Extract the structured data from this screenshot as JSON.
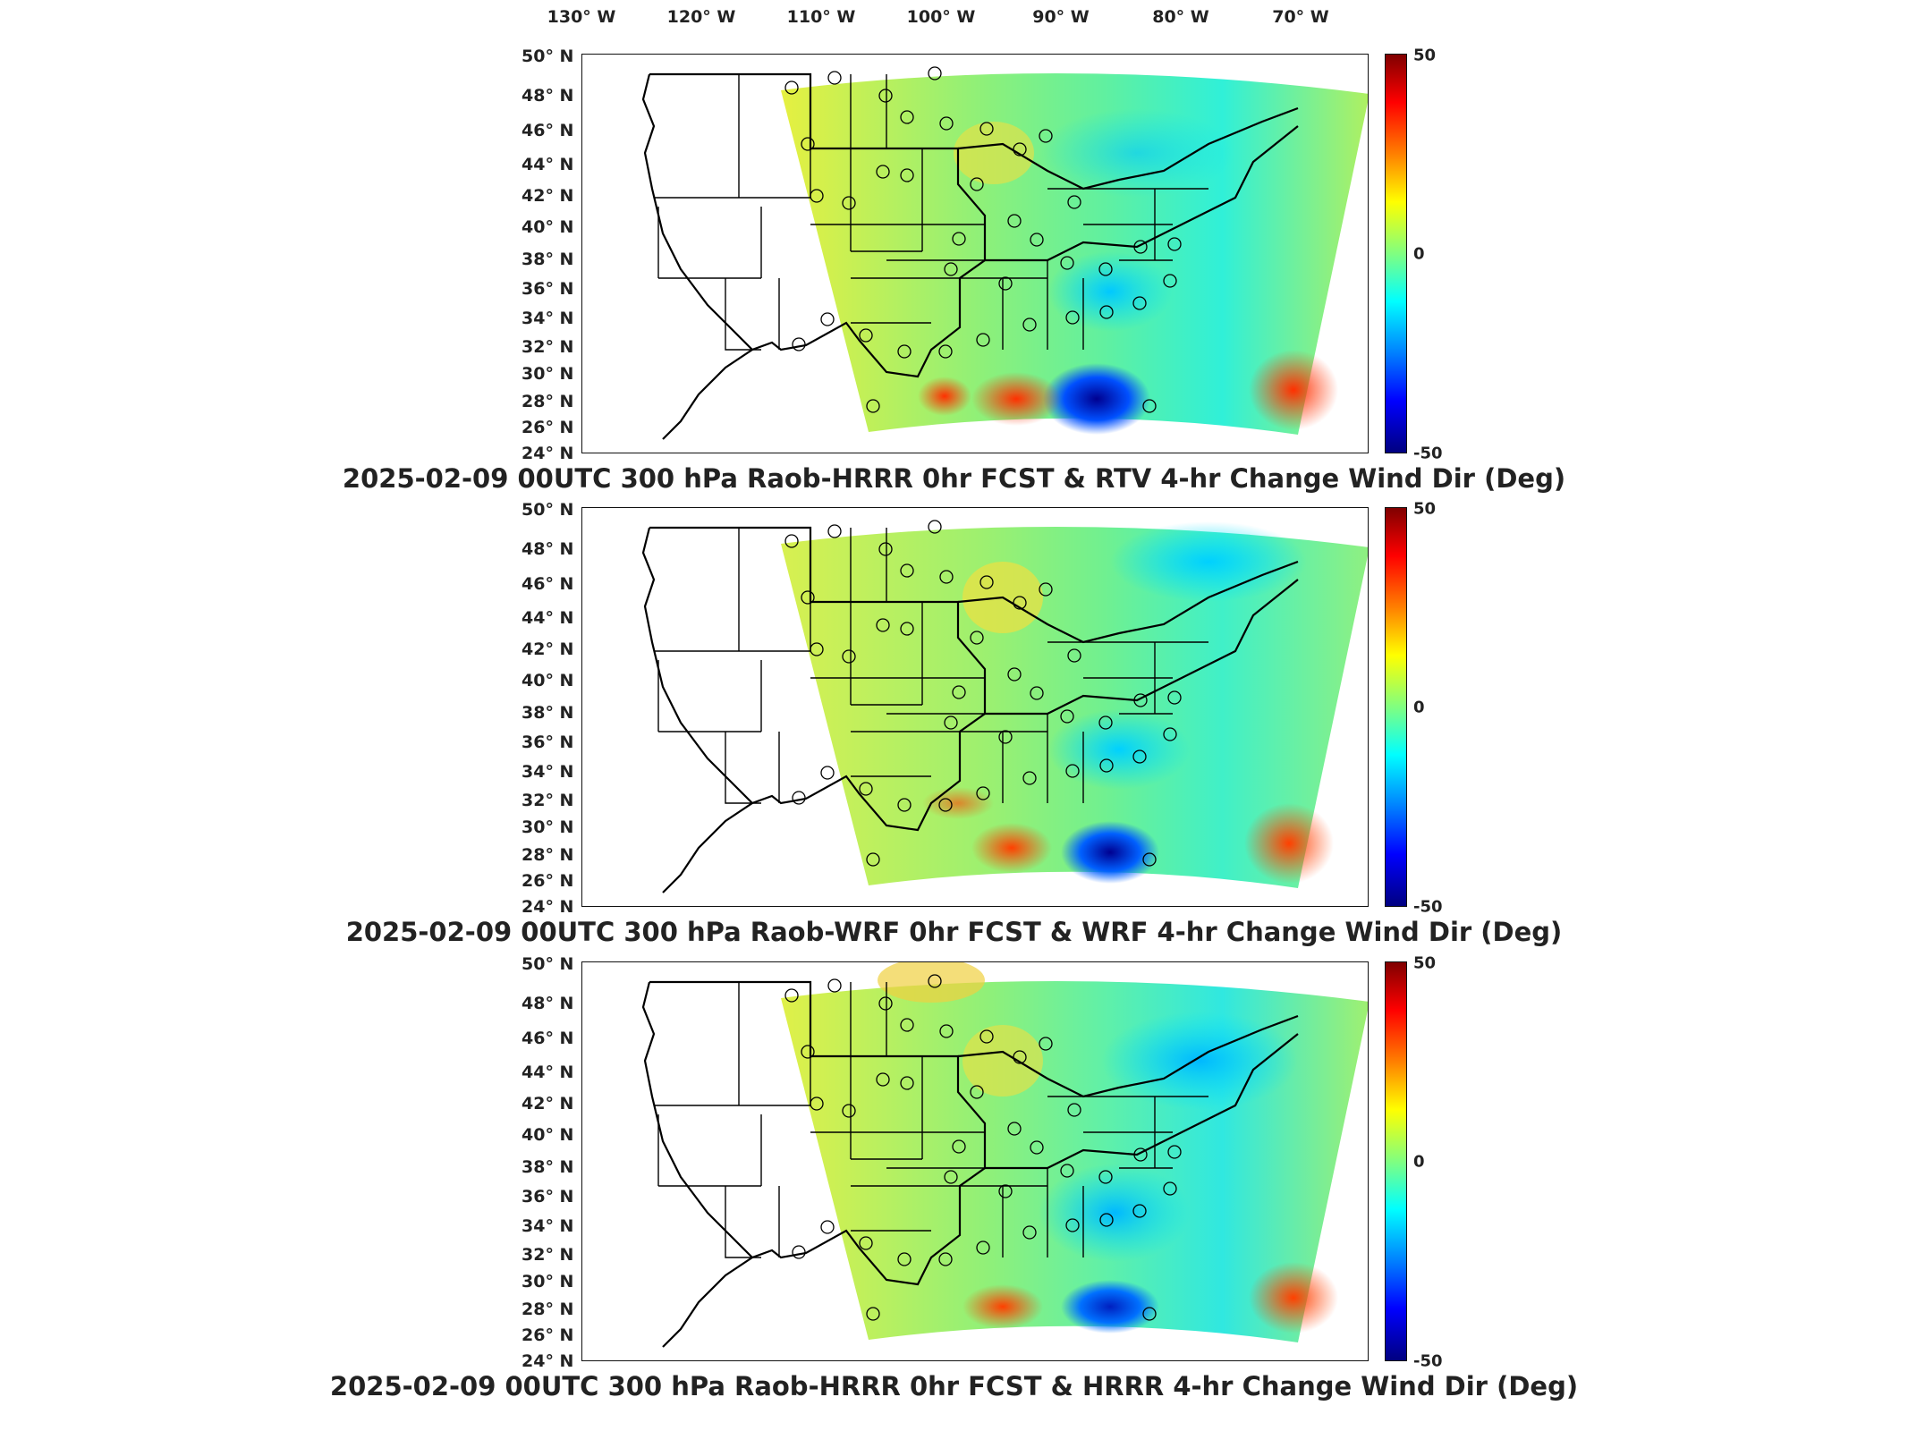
{
  "longitude_labels": [
    "130° W",
    "120° W",
    "110° W",
    "100° W",
    "90° W",
    "80° W",
    "70° W"
  ],
  "latitude_labels": [
    "50° N",
    "48° N",
    "46° N",
    "44° N",
    "42° N",
    "40° N",
    "38° N",
    "36° N",
    "34° N",
    "32° N",
    "30° N",
    "28° N",
    "26° N",
    "24° N"
  ],
  "colorbar": {
    "max_label": "50",
    "mid_label": "0",
    "min_label": "-50"
  },
  "panels": [
    {
      "title": "2025-02-09 00UTC 300 hPa Raob-HRRR 0hr FCST & RTV 4-hr Change Wind Dir (Deg)"
    },
    {
      "title": "2025-02-09 00UTC 300 hPa Raob-WRF 0hr FCST & WRF 4-hr Change Wind Dir (Deg)"
    },
    {
      "title": "2025-02-09 00UTC 300 hPa Raob-HRRR 0hr FCST & HRRR 4-hr Change Wind Dir (Deg)"
    }
  ],
  "map_data": {
    "colormap": "jet",
    "color_range": [
      -50,
      50
    ],
    "colors": {
      "red_max": "#800000",
      "mid": "#80ff80",
      "blue_min": "#000080"
    },
    "raob_station_count": 38
  }
}
